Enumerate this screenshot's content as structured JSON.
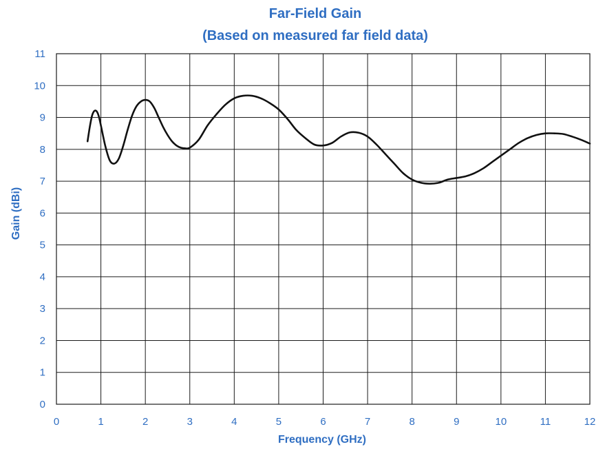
{
  "colors": {
    "text": "#2f6ec2",
    "grid": "#1a1a1a",
    "line": "#111111",
    "background": "#ffffff"
  },
  "chart_data": {
    "type": "line",
    "title": "Far-Field Gain",
    "subtitle": "(Based on measured far field data)",
    "xlabel": "Frequency (GHz)",
    "ylabel": "Gain (dBi)",
    "xlim": [
      0,
      12
    ],
    "ylim": [
      0,
      11
    ],
    "xticks": [
      0,
      1,
      2,
      3,
      4,
      5,
      6,
      7,
      8,
      9,
      10,
      11,
      12
    ],
    "yticks": [
      0,
      1,
      2,
      3,
      4,
      5,
      6,
      7,
      8,
      9,
      10,
      11
    ],
    "grid": true,
    "legend": "none",
    "series": [
      {
        "x": [
          0.7,
          0.75,
          0.8,
          0.85,
          0.9,
          0.95,
          1.0,
          1.1,
          1.2,
          1.3,
          1.4,
          1.5,
          1.6,
          1.7,
          1.8,
          1.9,
          2.0,
          2.1,
          2.2,
          2.3,
          2.4,
          2.5,
          2.6,
          2.7,
          2.8,
          2.9,
          3.0,
          3.2,
          3.4,
          3.6,
          3.8,
          4.0,
          4.2,
          4.4,
          4.6,
          4.8,
          5.0,
          5.2,
          5.4,
          5.6,
          5.8,
          6.0,
          6.2,
          6.4,
          6.6,
          6.8,
          7.0,
          7.2,
          7.4,
          7.6,
          7.8,
          8.0,
          8.2,
          8.4,
          8.6,
          8.8,
          9.0,
          9.2,
          9.4,
          9.6,
          9.8,
          10.0,
          10.2,
          10.4,
          10.6,
          10.8,
          11.0,
          11.2,
          11.4,
          11.6,
          11.8,
          12.0
        ],
        "y": [
          8.25,
          8.7,
          9.05,
          9.2,
          9.2,
          9.05,
          8.75,
          8.1,
          7.65,
          7.55,
          7.7,
          8.1,
          8.6,
          9.05,
          9.35,
          9.5,
          9.55,
          9.5,
          9.3,
          9.0,
          8.7,
          8.45,
          8.25,
          8.12,
          8.05,
          8.03,
          8.05,
          8.3,
          8.75,
          9.1,
          9.4,
          9.6,
          9.68,
          9.68,
          9.6,
          9.45,
          9.25,
          8.95,
          8.6,
          8.35,
          8.15,
          8.12,
          8.2,
          8.4,
          8.53,
          8.52,
          8.4,
          8.15,
          7.85,
          7.55,
          7.25,
          7.05,
          6.95,
          6.92,
          6.95,
          7.05,
          7.1,
          7.15,
          7.25,
          7.4,
          7.6,
          7.8,
          8.0,
          8.2,
          8.35,
          8.45,
          8.5,
          8.5,
          8.48,
          8.4,
          8.3,
          8.18
        ]
      }
    ]
  }
}
